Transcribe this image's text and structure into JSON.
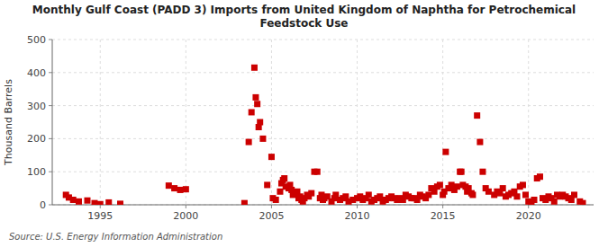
{
  "chart_data": {
    "type": "scatter",
    "title": "Monthly Gulf Coast (PADD 3) Imports from United Kingdom of Naphtha for Petrochemical\nFeedstock Use",
    "y_label": "Thousand Barrels",
    "annotations": [
      "Source: U.S. Energy Information Administration"
    ],
    "color": "#cc0000",
    "marker": "square",
    "grid": true,
    "xlim": [
      1992.2,
      2023.8
    ],
    "ylim": [
      0,
      500
    ],
    "xticks": [
      1995,
      2000,
      2005,
      2010,
      2015,
      2020
    ],
    "yticks": [
      0,
      100,
      200,
      300,
      400,
      500
    ],
    "x": [
      1993.0,
      1993.17,
      1993.42,
      1993.75,
      1994.25,
      1994.67,
      1995.0,
      1995.5,
      1996.17,
      1999.0,
      1999.33,
      1999.67,
      2000.0,
      2003.42,
      2003.67,
      2003.83,
      2004.0,
      2004.08,
      2004.17,
      2004.25,
      2004.33,
      2004.5,
      2004.75,
      2005.0,
      2005.08,
      2005.25,
      2005.5,
      2005.58,
      2005.67,
      2005.75,
      2005.83,
      2006.0,
      2006.08,
      2006.17,
      2006.25,
      2006.42,
      2006.5,
      2006.58,
      2006.67,
      2006.75,
      2006.83,
      2006.92,
      2007.08,
      2007.17,
      2007.33,
      2007.5,
      2007.67,
      2007.83,
      2007.92,
      2008.0,
      2008.08,
      2008.25,
      2008.5,
      2008.67,
      2008.75,
      2009.0,
      2009.17,
      2009.33,
      2009.5,
      2009.75,
      2010.0,
      2010.17,
      2010.33,
      2010.5,
      2010.67,
      2010.83,
      2011.0,
      2011.17,
      2011.33,
      2011.5,
      2011.67,
      2011.83,
      2012.0,
      2012.17,
      2012.33,
      2012.5,
      2012.67,
      2012.83,
      2013.0,
      2013.17,
      2013.33,
      2013.5,
      2013.67,
      2013.83,
      2014.0,
      2014.17,
      2014.33,
      2014.5,
      2014.67,
      2014.83,
      2015.0,
      2015.08,
      2015.17,
      2015.33,
      2015.5,
      2015.67,
      2015.83,
      2016.0,
      2016.08,
      2016.17,
      2016.33,
      2016.42,
      2016.5,
      2016.67,
      2016.75,
      2017.0,
      2017.17,
      2017.33,
      2017.5,
      2017.67,
      2018.0,
      2018.17,
      2018.33,
      2018.5,
      2018.67,
      2018.83,
      2019.0,
      2019.17,
      2019.33,
      2019.5,
      2019.67,
      2019.83,
      2020.0,
      2020.17,
      2020.33,
      2020.5,
      2020.67,
      2020.83,
      2021.0,
      2021.17,
      2021.33,
      2021.5,
      2021.67,
      2021.83,
      2022.0,
      2022.17,
      2022.33,
      2022.5,
      2022.67,
      2023.0,
      2023.17
    ],
    "values": [
      30,
      22,
      15,
      10,
      13,
      5,
      2,
      7,
      3,
      58,
      50,
      45,
      47,
      5,
      190,
      280,
      415,
      325,
      305,
      235,
      250,
      200,
      60,
      145,
      20,
      15,
      40,
      65,
      75,
      80,
      55,
      50,
      60,
      45,
      30,
      35,
      40,
      20,
      25,
      15,
      10,
      20,
      30,
      25,
      35,
      100,
      100,
      20,
      30,
      15,
      20,
      25,
      10,
      20,
      30,
      15,
      20,
      25,
      10,
      15,
      20,
      25,
      15,
      20,
      30,
      10,
      15,
      20,
      25,
      10,
      15,
      20,
      25,
      20,
      15,
      20,
      15,
      30,
      25,
      20,
      20,
      15,
      30,
      25,
      20,
      30,
      50,
      40,
      55,
      60,
      30,
      40,
      160,
      50,
      60,
      45,
      55,
      100,
      100,
      60,
      55,
      40,
      50,
      35,
      30,
      270,
      190,
      100,
      50,
      40,
      30,
      40,
      35,
      50,
      25,
      30,
      35,
      40,
      25,
      55,
      60,
      30,
      10,
      5,
      15,
      80,
      85,
      20,
      15,
      25,
      20,
      10,
      30,
      25,
      30,
      25,
      20,
      15,
      30,
      10,
      5
    ]
  }
}
